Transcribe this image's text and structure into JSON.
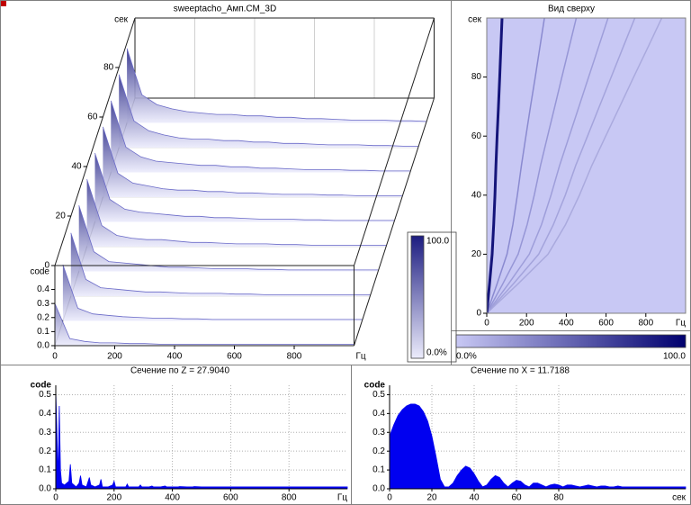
{
  "chart_data": [
    {
      "type": "waterfall",
      "title": "sweeptacho_Амп.СМ_3D",
      "x_label": "Гц",
      "y_label": "сек",
      "z_label": "code",
      "xlim": [
        0,
        1000
      ],
      "xticks": [
        0,
        200,
        400,
        600,
        800
      ],
      "ylim": [
        0,
        100
      ],
      "yticks": [
        0,
        20,
        40,
        60,
        80
      ],
      "zlim": [
        0,
        0.57
      ],
      "zticks": [
        {
          "value": 0,
          "label": "0.0"
        },
        {
          "value": 0.1,
          "label": "0.1"
        },
        {
          "value": 0.2,
          "label": "0.2"
        },
        {
          "value": 0.3,
          "label": "0.3"
        },
        {
          "value": 0.4,
          "label": "0.4"
        }
      ],
      "x": [
        0,
        50,
        100,
        150,
        200,
        250,
        300,
        350,
        400,
        450,
        500,
        550,
        600,
        650,
        700,
        750,
        800,
        850,
        900,
        950,
        1000
      ],
      "y": [
        90,
        80,
        70,
        60,
        50,
        40,
        30,
        20,
        10,
        0
      ],
      "values": [
        [
          0.53,
          0.2,
          0.13,
          0.1,
          0.08,
          0.07,
          0.06,
          0.06,
          0.05,
          0.05,
          0.04,
          0.04,
          0.03,
          0.03,
          0.025,
          0.02,
          0.02,
          0.02,
          0.015,
          0.015,
          0.01
        ],
        [
          0.52,
          0.19,
          0.12,
          0.09,
          0.07,
          0.06,
          0.06,
          0.05,
          0.05,
          0.04,
          0.04,
          0.03,
          0.03,
          0.025,
          0.02,
          0.02,
          0.02,
          0.015,
          0.015,
          0.01,
          0.01
        ],
        [
          0.51,
          0.18,
          0.11,
          0.08,
          0.07,
          0.06,
          0.05,
          0.05,
          0.04,
          0.04,
          0.03,
          0.03,
          0.025,
          0.02,
          0.02,
          0.02,
          0.015,
          0.015,
          0.01,
          0.01,
          0.01
        ],
        [
          0.5,
          0.17,
          0.1,
          0.08,
          0.06,
          0.05,
          0.05,
          0.04,
          0.04,
          0.03,
          0.03,
          0.025,
          0.02,
          0.02,
          0.02,
          0.015,
          0.015,
          0.01,
          0.01,
          0.01,
          0.01
        ],
        [
          0.49,
          0.16,
          0.09,
          0.07,
          0.06,
          0.05,
          0.04,
          0.04,
          0.03,
          0.03,
          0.025,
          0.02,
          0.02,
          0.02,
          0.015,
          0.015,
          0.01,
          0.01,
          0.01,
          0.01,
          0.01
        ],
        [
          0.48,
          0.15,
          0.08,
          0.06,
          0.05,
          0.05,
          0.04,
          0.03,
          0.03,
          0.025,
          0.02,
          0.02,
          0.02,
          0.015,
          0.015,
          0.01,
          0.01,
          0.01,
          0.01,
          0.01,
          0.01
        ],
        [
          0.47,
          0.14,
          0.07,
          0.06,
          0.05,
          0.04,
          0.03,
          0.03,
          0.025,
          0.02,
          0.02,
          0.02,
          0.015,
          0.015,
          0.01,
          0.01,
          0.01,
          0.01,
          0.01,
          0.01,
          0.01
        ],
        [
          0.45,
          0.12,
          0.06,
          0.05,
          0.04,
          0.03,
          0.03,
          0.025,
          0.02,
          0.02,
          0.02,
          0.015,
          0.015,
          0.01,
          0.01,
          0.01,
          0.01,
          0.01,
          0.01,
          0.01,
          0.01
        ],
        [
          0.4,
          0.09,
          0.05,
          0.04,
          0.03,
          0.025,
          0.02,
          0.02,
          0.015,
          0.015,
          0.01,
          0.01,
          0.01,
          0.01,
          0.01,
          0.01,
          0.01,
          0.01,
          0.01,
          0.01,
          0.01
        ],
        [
          0.3,
          0.05,
          0.03,
          0.02,
          0.02,
          0.015,
          0.015,
          0.01,
          0.01,
          0.01,
          0.01,
          0.01,
          0.01,
          0.01,
          0.01,
          0.01,
          0.01,
          0.01,
          0.01,
          0.01,
          0.01
        ]
      ],
      "color": "#6a6ac8",
      "colorbar": {
        "colors": [
          "#ececfc",
          "#1c1c80"
        ],
        "ticks": [
          {
            "value": 100,
            "label": "100.0"
          },
          {
            "value": 0,
            "label": "0.0%"
          }
        ]
      }
    },
    {
      "type": "heatmap",
      "title": "Вид сверху",
      "x_label": "Гц",
      "y_label": "сек",
      "xlim": [
        0,
        1000
      ],
      "xticks": [
        0,
        200,
        400,
        600,
        800
      ],
      "ylim": [
        0,
        100
      ],
      "yticks": [
        0,
        20,
        40,
        60,
        80
      ],
      "background": "#c8c8f4",
      "y": [
        0,
        10,
        20,
        30,
        40,
        50,
        60,
        70,
        80,
        90,
        100
      ],
      "series": [
        {
          "color": "#14147a",
          "values": [
            0,
            14,
            27,
            35,
            41,
            46,
            52,
            59,
            65,
            71,
            77
          ]
        },
        {
          "color": "#8a8ad0",
          "values": [
            0,
            52,
            102,
            131,
            154,
            174,
            197,
            220,
            244,
            267,
            290
          ]
        },
        {
          "color": "#9696d6",
          "values": [
            0,
            81,
            158,
            203,
            239,
            270,
            306,
            342,
            378,
            414,
            450
          ]
        },
        {
          "color": "#9e9eda",
          "values": [
            0,
            110,
            214,
            275,
            323,
            366,
            415,
            464,
            512,
            561,
            610
          ]
        },
        {
          "color": "#a4a4dc",
          "values": [
            0,
            134,
            261,
            335,
            395,
            447,
            507,
            566,
            626,
            685,
            745
          ]
        },
        {
          "color": "#aaaade",
          "values": [
            0,
            158,
            308,
            396,
            466,
            528,
            598,
            669,
            739,
            810,
            880
          ]
        }
      ],
      "colorbar": {
        "colors": [
          "#c8c8f4",
          "#00006e"
        ],
        "ticks": [
          {
            "value": 0,
            "label": "0.0%"
          },
          {
            "value": 100,
            "label": "100.0"
          }
        ]
      }
    },
    {
      "type": "area",
      "title": "Сечение по Z = 27.9040",
      "x_label": "Гц",
      "y_label": "code",
      "color": "#0000f0",
      "grid": true,
      "xlim": [
        0,
        1000
      ],
      "xticks": [
        0,
        200,
        400,
        600,
        800
      ],
      "ylim": [
        0,
        0.55
      ],
      "yticks": [
        {
          "value": 0,
          "label": "0.0"
        },
        {
          "value": 0.1,
          "label": "0.1"
        },
        {
          "value": 0.2,
          "label": "0.2"
        },
        {
          "value": 0.3,
          "label": "0.3"
        },
        {
          "value": 0.4,
          "label": "0.4"
        },
        {
          "value": 0.5,
          "label": "0.5"
        }
      ],
      "x": [
        0,
        4,
        8,
        12,
        16,
        20,
        30,
        45,
        50,
        55,
        70,
        80,
        85,
        90,
        105,
        115,
        120,
        135,
        150,
        155,
        160,
        180,
        195,
        200,
        205,
        225,
        240,
        245,
        250,
        270,
        285,
        290,
        295,
        320,
        330,
        335,
        360,
        375,
        380,
        400,
        420,
        425,
        450,
        470,
        475,
        500,
        520,
        525,
        560,
        600,
        640,
        680,
        720,
        760,
        800,
        840,
        880,
        920,
        960,
        1000
      ],
      "values": [
        0.52,
        0.3,
        0.05,
        0.44,
        0.1,
        0.03,
        0.02,
        0.04,
        0.13,
        0.03,
        0.01,
        0.03,
        0.07,
        0.02,
        0.01,
        0.06,
        0.02,
        0.01,
        0.02,
        0.05,
        0.01,
        0.01,
        0.02,
        0.04,
        0.01,
        0.01,
        0.01,
        0.025,
        0.01,
        0.01,
        0.01,
        0.02,
        0.01,
        0.01,
        0.015,
        0.01,
        0.01,
        0.015,
        0.01,
        0.01,
        0.01,
        0.012,
        0.01,
        0.01,
        0.012,
        0.01,
        0.01,
        0.01,
        0.01,
        0.01,
        0.01,
        0.01,
        0.01,
        0.01,
        0.01,
        0.01,
        0.01,
        0.01,
        0.01,
        0.01
      ]
    },
    {
      "type": "area",
      "title": "Сечение по X = 11.7188",
      "x_label": "сек",
      "y_label": "code",
      "color": "#0000f0",
      "grid": true,
      "xlim": [
        0,
        140
      ],
      "xticks": [
        0,
        20,
        40,
        60,
        80
      ],
      "ylim": [
        0,
        0.55
      ],
      "yticks": [
        {
          "value": 0,
          "label": "0.0"
        },
        {
          "value": 0.1,
          "label": "0.1"
        },
        {
          "value": 0.2,
          "label": "0.2"
        },
        {
          "value": 0.3,
          "label": "0.3"
        },
        {
          "value": 0.4,
          "label": "0.4"
        },
        {
          "value": 0.5,
          "label": "0.5"
        }
      ],
      "x": [
        0,
        2,
        4,
        6,
        8,
        10,
        12,
        14,
        16,
        18,
        20,
        22,
        24,
        26,
        28,
        30,
        32,
        34,
        36,
        38,
        40,
        42,
        44,
        46,
        48,
        50,
        52,
        54,
        56,
        58,
        60,
        62,
        64,
        66,
        68,
        70,
        72,
        74,
        76,
        78,
        80,
        82,
        84,
        86,
        88,
        90,
        92,
        94,
        96,
        98,
        100,
        102,
        104,
        106,
        108,
        110,
        112,
        114,
        116,
        118,
        120,
        122,
        124,
        126,
        128,
        130,
        132,
        134,
        136,
        138,
        140
      ],
      "values": [
        0.28,
        0.34,
        0.39,
        0.42,
        0.44,
        0.45,
        0.45,
        0.44,
        0.41,
        0.36,
        0.28,
        0.17,
        0.05,
        0.01,
        0.01,
        0.03,
        0.07,
        0.1,
        0.12,
        0.11,
        0.08,
        0.04,
        0.01,
        0.02,
        0.05,
        0.07,
        0.06,
        0.03,
        0.01,
        0.03,
        0.045,
        0.04,
        0.02,
        0.01,
        0.03,
        0.03,
        0.02,
        0.01,
        0.02,
        0.025,
        0.02,
        0.01,
        0.02,
        0.02,
        0.015,
        0.01,
        0.015,
        0.02,
        0.015,
        0.01,
        0.015,
        0.015,
        0.01,
        0.01,
        0.015,
        0.01,
        0.01,
        0.01,
        0.01,
        0.01,
        0.01,
        0.01,
        0.01,
        0.01,
        0.01,
        0.01,
        0.01,
        0.01,
        0.01,
        0.01,
        0.01
      ]
    }
  ]
}
